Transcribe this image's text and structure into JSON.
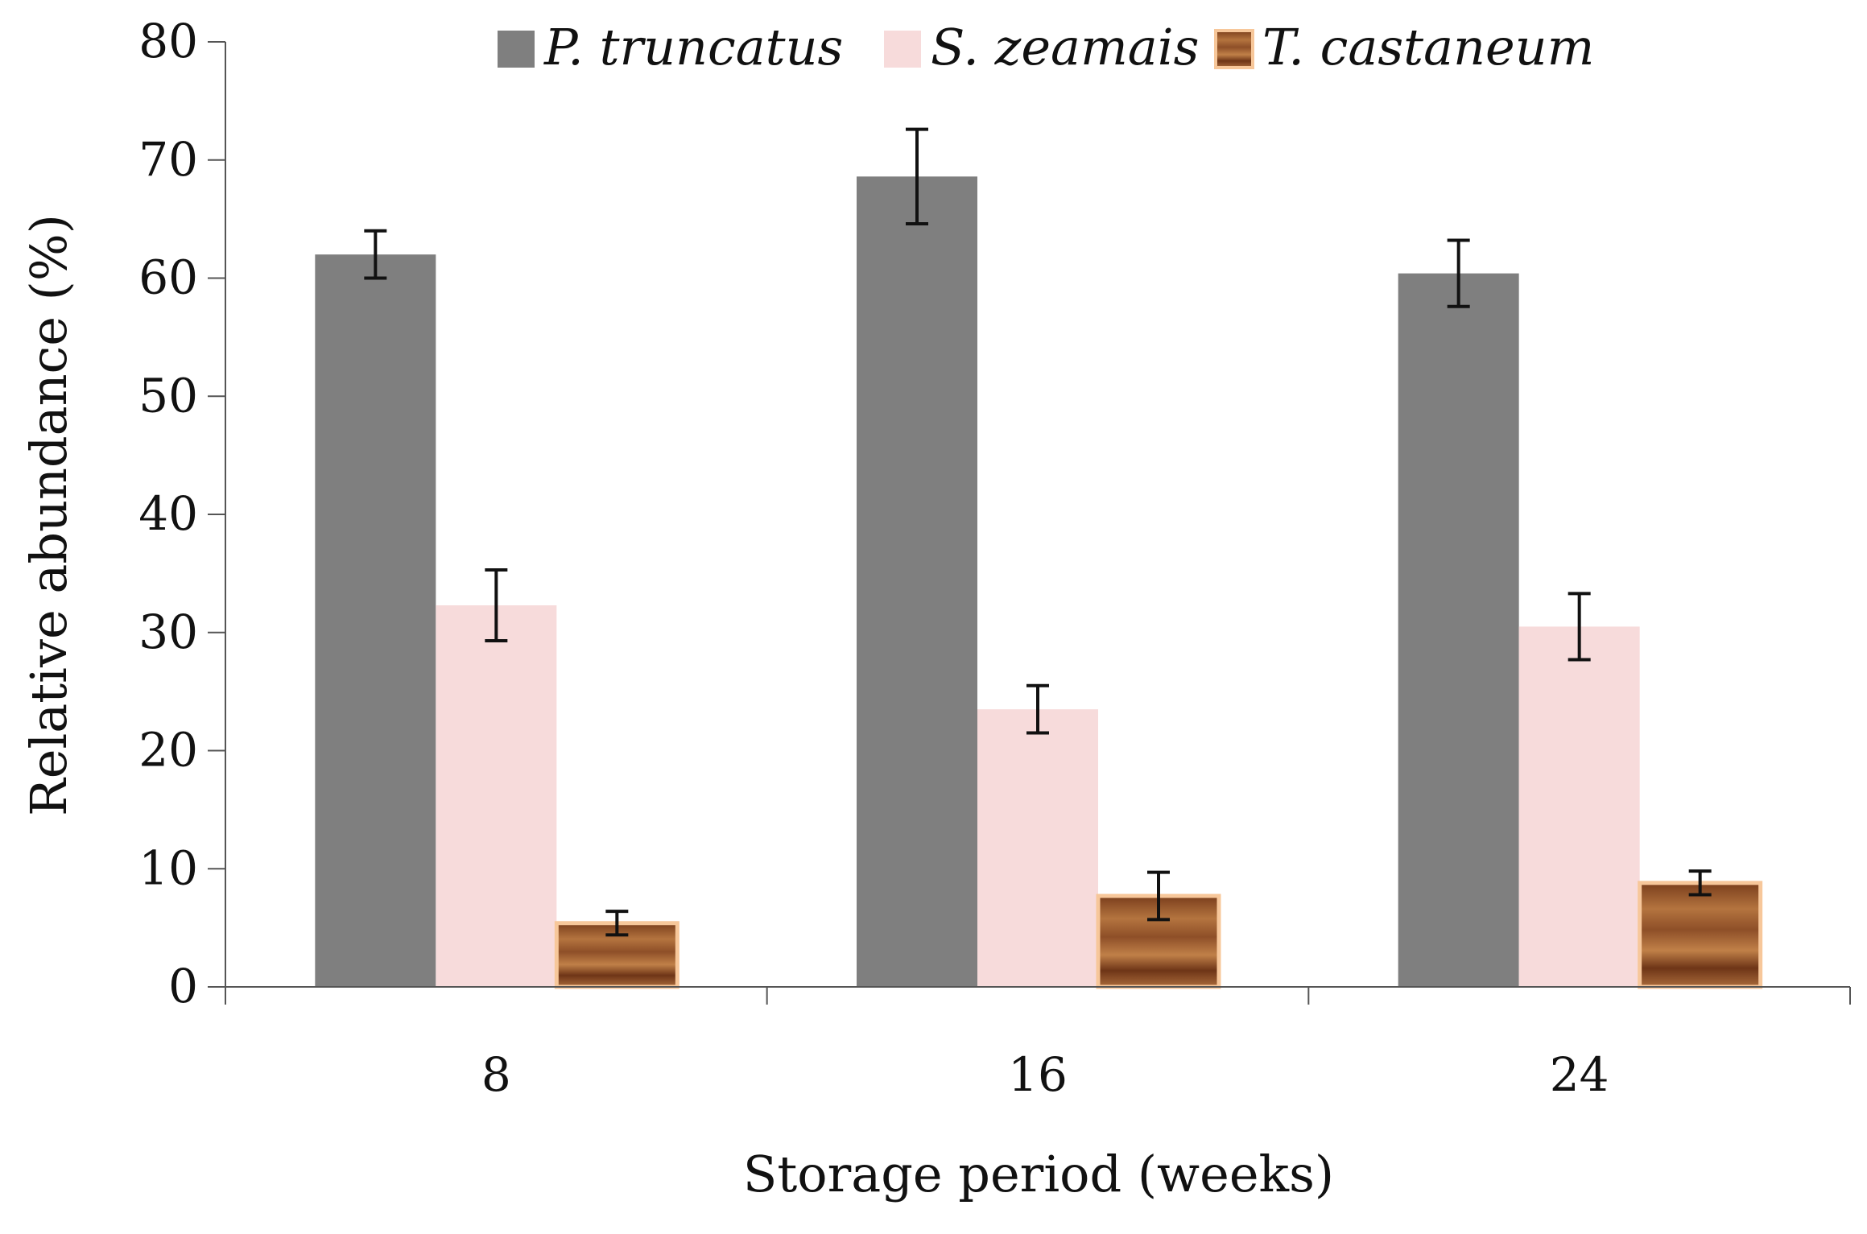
{
  "chart_data": {
    "type": "bar",
    "title": "",
    "xlabel": "Storage period (weeks)",
    "ylabel": "Relative abundance (%)",
    "categories": [
      "8",
      "16",
      "24"
    ],
    "ylim": [
      0,
      80
    ],
    "yticks": [
      "0",
      "10",
      "20",
      "30",
      "40",
      "50",
      "60",
      "70",
      "80"
    ],
    "grid": false,
    "legend_position": "top",
    "series": [
      {
        "name": "P. truncatus",
        "values": [
          62,
          68.6,
          60.4
        ],
        "errors": [
          2.0,
          4.0,
          2.8
        ],
        "color": "#7f7f7f"
      },
      {
        "name": "S. zeamais",
        "values": [
          32.3,
          23.5,
          30.5
        ],
        "errors": [
          3.0,
          2.0,
          2.8
        ],
        "color": "#f7dbdb"
      },
      {
        "name": "T. castaneum",
        "values": [
          5.4,
          7.7,
          8.8
        ],
        "errors": [
          1.0,
          2.0,
          1.0
        ],
        "color": "#a0643a",
        "border": "#f7c79a"
      }
    ]
  }
}
